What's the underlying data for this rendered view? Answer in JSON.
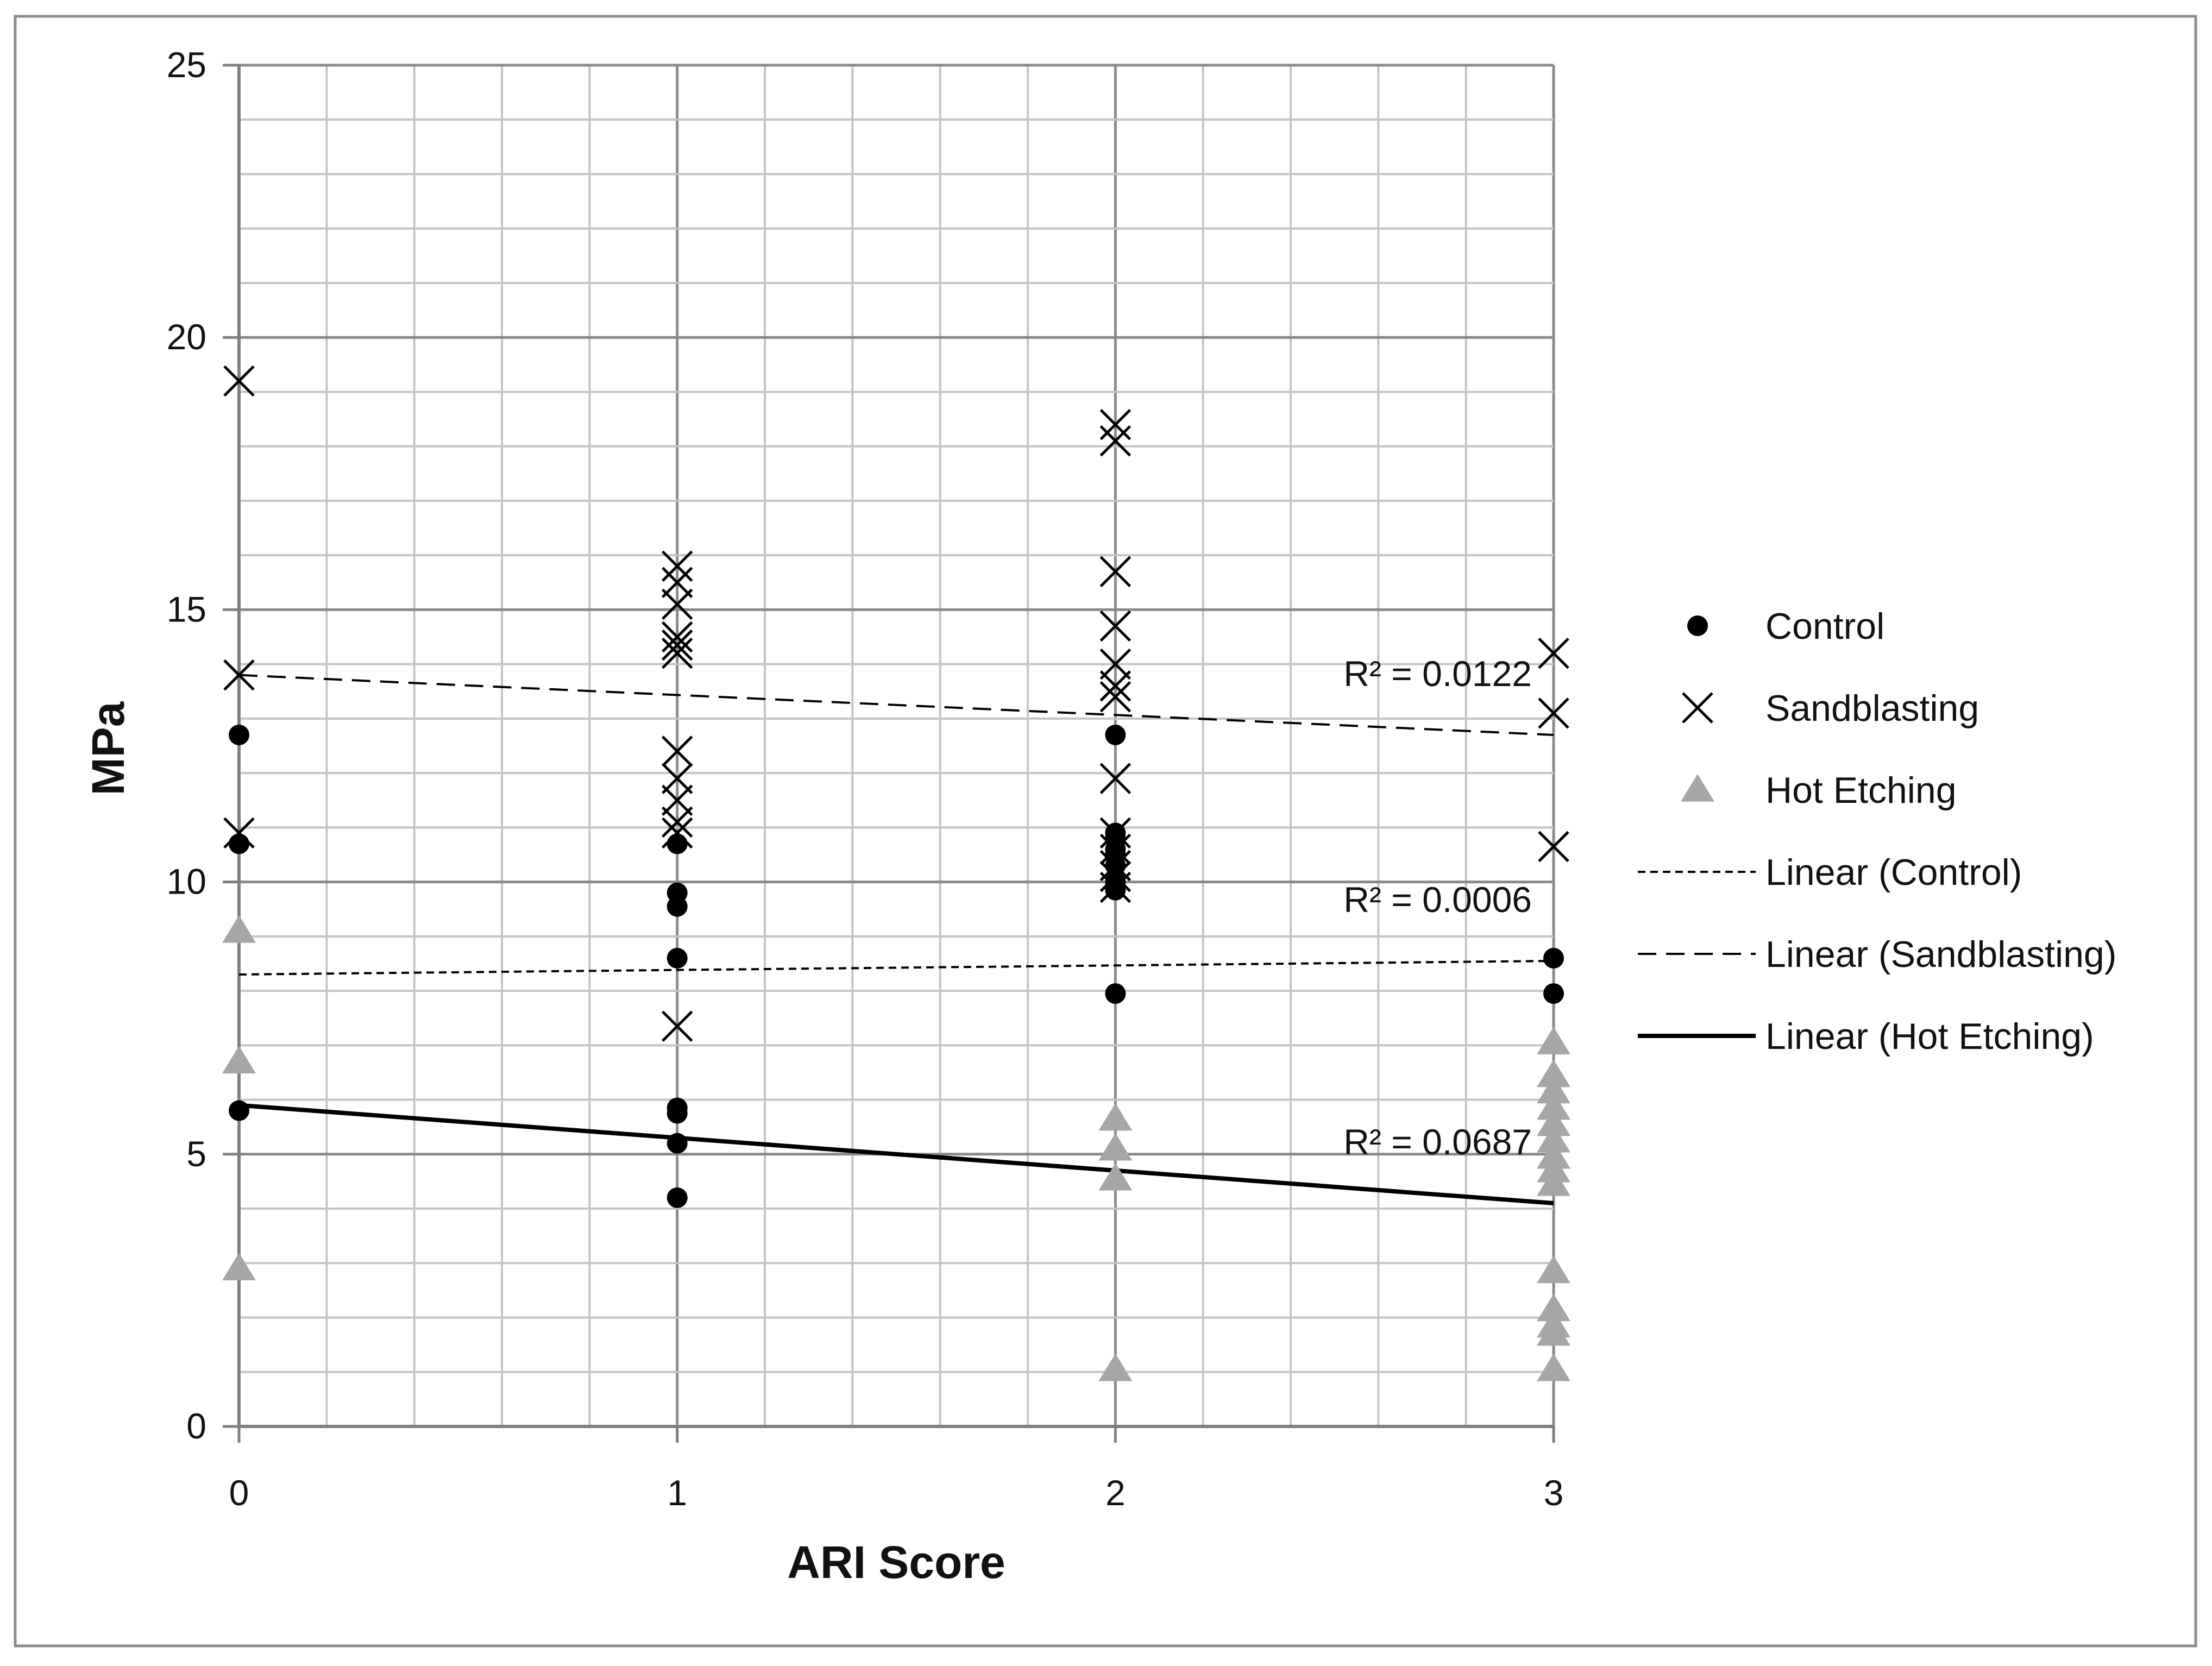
{
  "chart_data": {
    "type": "scatter",
    "title": "",
    "xlabel": "ARI Score",
    "ylabel": "MPa",
    "xlim": [
      0,
      3
    ],
    "ylim": [
      0,
      25
    ],
    "x_ticks": [
      0,
      1,
      2,
      3
    ],
    "x_tick_labels": [
      "0",
      "1",
      "2",
      "3"
    ],
    "y_ticks": [
      0,
      5,
      10,
      15,
      20,
      25
    ],
    "y_tick_labels": [
      "0",
      "5",
      "10",
      "15",
      "20",
      "25"
    ],
    "grid": true,
    "legend_position": "right",
    "series": [
      {
        "name": "Control",
        "marker": "circle",
        "color": "#000000",
        "x": [
          0,
          0,
          0,
          1,
          1,
          1,
          1,
          1,
          1,
          1,
          1,
          2,
          2,
          2,
          2,
          2,
          2,
          2,
          2,
          2,
          3,
          3
        ],
        "y": [
          12.7,
          10.7,
          5.8,
          10.7,
          9.8,
          9.55,
          8.6,
          5.85,
          5.75,
          5.2,
          4.2,
          12.7,
          10.9,
          10.8,
          10.5,
          10.3,
          10.0,
          9.85,
          7.95,
          10.6,
          8.6,
          7.95
        ]
      },
      {
        "name": "Sandblasting",
        "marker": "cross",
        "color": "#000000",
        "x": [
          0,
          0,
          0,
          1,
          1,
          1,
          1,
          1,
          1,
          1,
          1,
          1,
          1,
          1,
          1,
          2,
          2,
          2,
          2,
          2,
          2,
          2,
          2,
          2,
          2,
          2,
          2,
          2,
          3,
          3,
          3
        ],
        "y": [
          19.2,
          13.8,
          10.9,
          15.8,
          15.5,
          15.1,
          14.5,
          14.35,
          14.2,
          12.4,
          11.9,
          11.5,
          11.1,
          10.9,
          7.35,
          18.4,
          18.1,
          15.7,
          14.7,
          14.0,
          13.6,
          13.4,
          11.9,
          10.9,
          10.6,
          10.3,
          10.1,
          9.9,
          14.2,
          13.1,
          10.65
        ]
      },
      {
        "name": "Hot Etching",
        "marker": "triangle",
        "color": "#a6a6a6",
        "x": [
          0,
          0,
          0,
          2,
          2,
          2,
          2,
          3,
          3,
          3,
          3,
          3,
          3,
          3,
          3,
          3,
          3,
          3,
          3,
          3,
          3
        ],
        "y": [
          9.1,
          6.7,
          2.9,
          5.65,
          5.1,
          4.55,
          1.05,
          7.05,
          6.45,
          6.15,
          5.85,
          5.55,
          5.25,
          4.95,
          4.7,
          4.45,
          2.85,
          2.15,
          1.85,
          1.7,
          1.05
        ]
      }
    ],
    "trendlines": [
      {
        "name": "Linear (Control)",
        "style": "dotted",
        "x": [
          0,
          3
        ],
        "y": [
          8.3,
          8.55
        ],
        "r2_label": "R² = 0.0006"
      },
      {
        "name": "Linear (Sandblasting)",
        "style": "dashed",
        "x": [
          0,
          3
        ],
        "y": [
          13.8,
          12.7
        ],
        "r2_label": "R² = 0.0122"
      },
      {
        "name": "Linear (Hot Etching)",
        "style": "solid",
        "x": [
          0,
          3
        ],
        "y": [
          5.9,
          4.1
        ],
        "r2_label": "R² = 0.0687"
      }
    ]
  }
}
